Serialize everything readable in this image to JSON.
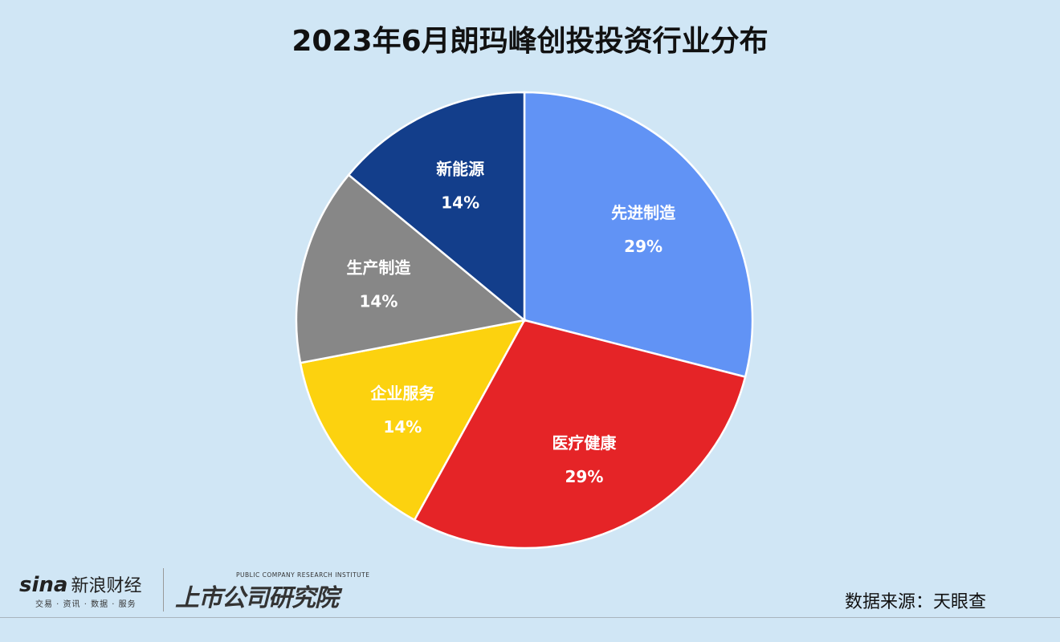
{
  "chart_data": {
    "type": "pie",
    "title": "2023年6月朗玛峰创投投资行业分布",
    "categories": [
      "先进制造",
      "医疗健康",
      "企业服务",
      "生产制造",
      "新能源"
    ],
    "values": [
      29,
      29,
      14,
      14,
      14
    ],
    "labels": [
      "29%",
      "29%",
      "14%",
      "14%",
      "14%"
    ],
    "colors": [
      "#6193f5",
      "#e52427",
      "#fcd20f",
      "#878787",
      "#133e8b"
    ],
    "start_angle": "top, clockwise",
    "legend": "none"
  },
  "footer": {
    "source": "数据来源：天眼查",
    "sina_logo": "sina新浪财经",
    "sina_word": "sina",
    "sina_cn": "新浪财经",
    "sina_sub": "交易 · 资讯 · 数据 · 服务",
    "institute_en": "PUBLIC COMPANY RESEARCH INSTITUTE",
    "institute_cn": "上市公司研究院"
  }
}
